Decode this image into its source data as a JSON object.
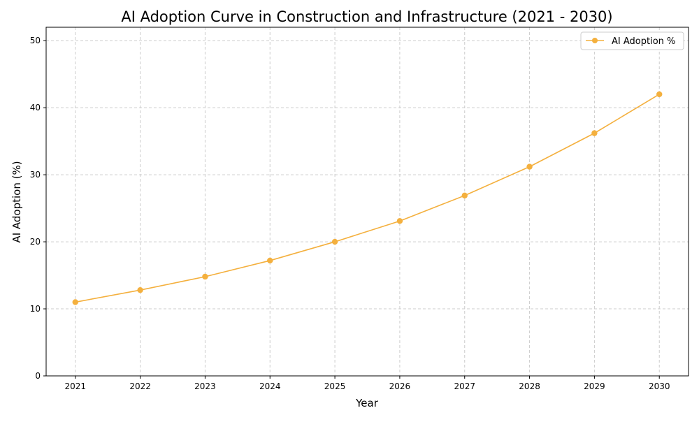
{
  "chart_data": {
    "type": "line",
    "title": "AI Adoption Curve in Construction and Infrastructure (2021 - 2030)",
    "xlabel": "Year",
    "ylabel": "AI Adoption (%)",
    "x": [
      2021,
      2022,
      2023,
      2024,
      2025,
      2026,
      2027,
      2028,
      2029,
      2030
    ],
    "series": [
      {
        "name": "AI Adoption %",
        "values": [
          11.0,
          12.8,
          14.8,
          17.2,
          20.0,
          23.1,
          26.9,
          31.2,
          36.2,
          42.0
        ],
        "color": "#f4b03e",
        "marker": "circle"
      }
    ],
    "xlim": [
      2020.55,
      2030.45
    ],
    "ylim": [
      0,
      52
    ],
    "yticks": [
      0,
      10,
      20,
      30,
      40,
      50
    ],
    "xticks": [
      2021,
      2022,
      2023,
      2024,
      2025,
      2026,
      2027,
      2028,
      2029,
      2030
    ],
    "grid": true,
    "grid_style": "dashed",
    "legend_position": "top-right"
  }
}
